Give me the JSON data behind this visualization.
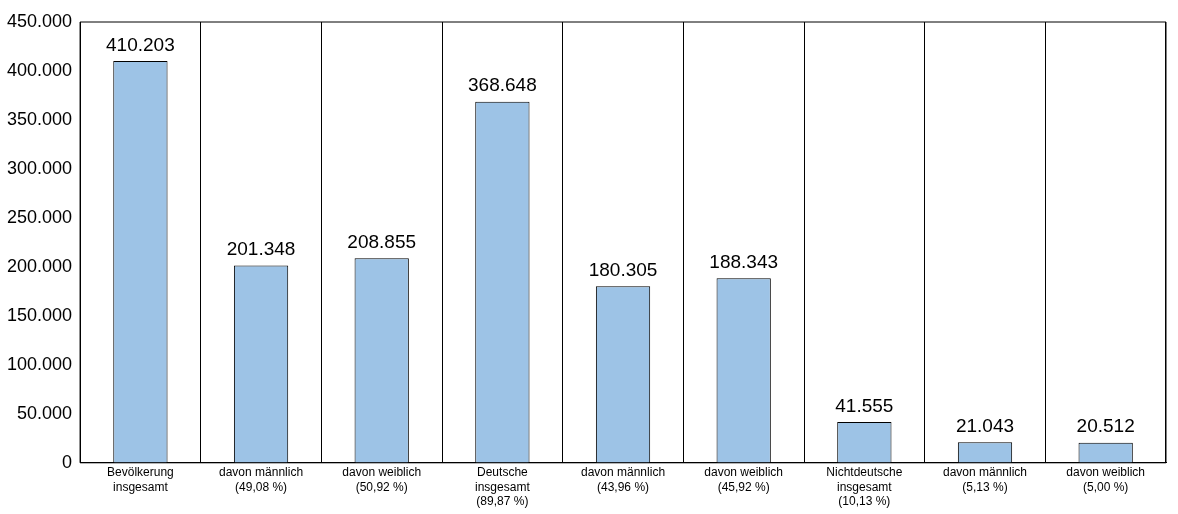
{
  "chart_data": {
    "type": "bar",
    "categories": [
      "Bevölkerung\ninsgesamt",
      "davon männlich\n(49,08 %)",
      "davon weiblich\n(50,92 %)",
      "Deutsche\ninsgesamt\n(89,87 %)",
      "davon männlich\n(43,96 %)",
      "davon weiblich\n(45,92 %)",
      "Nichtdeutsche\ninsgesamt\n(10,13 %)",
      "davon männlich\n(5,13 %)",
      "davon weiblich\n(5,00 %)"
    ],
    "values": [
      410203,
      201348,
      208855,
      368648,
      180305,
      188343,
      41555,
      21043,
      20512
    ],
    "value_labels": [
      "410.203",
      "201.348",
      "208.855",
      "368.648",
      "180.305",
      "188.343",
      "41.555",
      "21.043",
      "20.512"
    ],
    "color": "#9dc3e6",
    "ylim": [
      0,
      450000
    ],
    "yticks": [
      {
        "value": 0,
        "label": "0"
      },
      {
        "value": 50000,
        "label": "50.000"
      },
      {
        "value": 100000,
        "label": "100.000"
      },
      {
        "value": 150000,
        "label": "150.000"
      },
      {
        "value": 200000,
        "label": "200.000"
      },
      {
        "value": 250000,
        "label": "250.000"
      },
      {
        "value": 300000,
        "label": "300.000"
      },
      {
        "value": 350000,
        "label": "350.000"
      },
      {
        "value": 400000,
        "label": "400.000"
      },
      {
        "value": 450000,
        "label": "450.000"
      }
    ],
    "grid": "x",
    "legend": false
  }
}
